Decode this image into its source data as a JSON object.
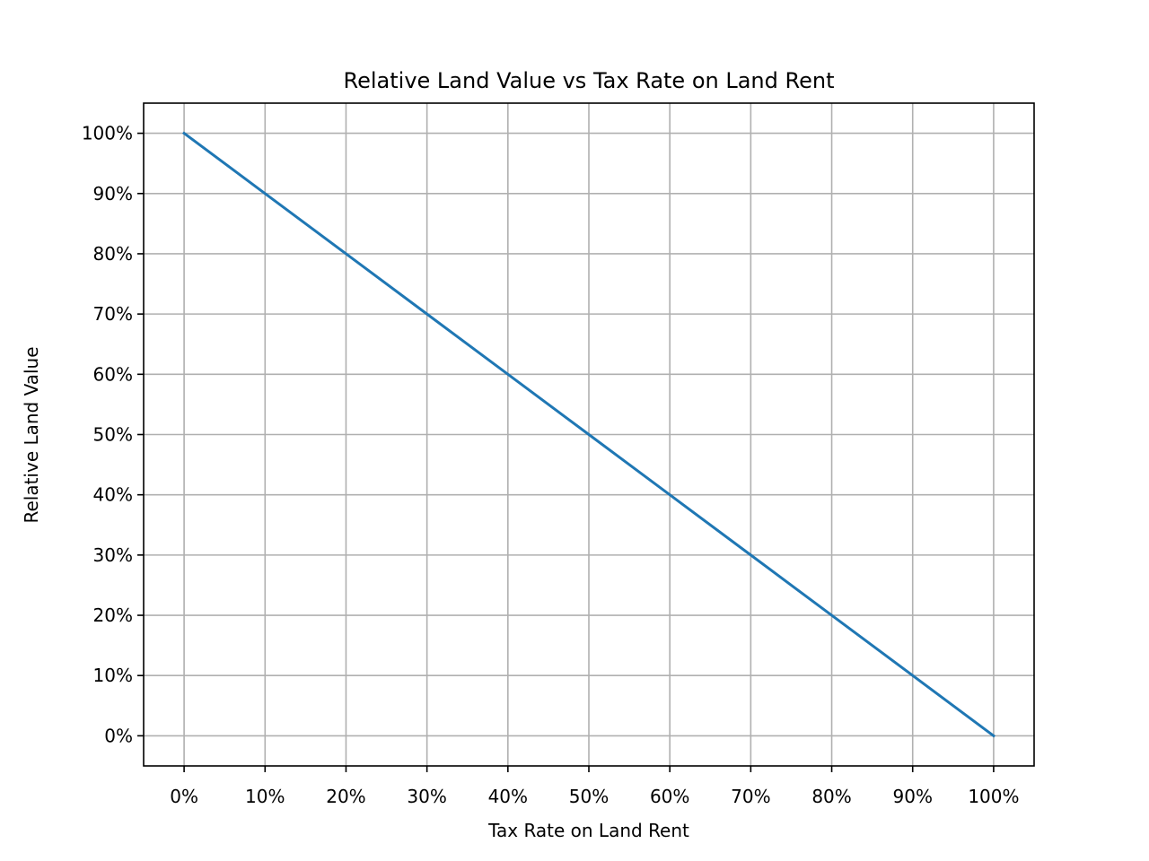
{
  "chart_data": {
    "type": "line",
    "title": "Relative Land Value vs Tax Rate on Land Rent",
    "xlabel": "Tax Rate on Land Rent",
    "ylabel": "Relative Land Value",
    "xlim": [
      -5,
      105
    ],
    "ylim": [
      -5,
      105
    ],
    "x_ticks": [
      0,
      10,
      20,
      30,
      40,
      50,
      60,
      70,
      80,
      90,
      100
    ],
    "x_tick_labels": [
      "0%",
      "10%",
      "20%",
      "30%",
      "40%",
      "50%",
      "60%",
      "70%",
      "80%",
      "90%",
      "100%"
    ],
    "y_ticks": [
      0,
      10,
      20,
      30,
      40,
      50,
      60,
      70,
      80,
      90,
      100
    ],
    "y_tick_labels": [
      "0%",
      "10%",
      "20%",
      "30%",
      "40%",
      "50%",
      "60%",
      "70%",
      "80%",
      "90%",
      "100%"
    ],
    "grid": true,
    "series": [
      {
        "color": "#1f77b4",
        "x": [
          0,
          10,
          20,
          30,
          40,
          50,
          60,
          70,
          80,
          90,
          100
        ],
        "y": [
          100,
          90,
          80,
          70,
          60,
          50,
          40,
          30,
          20,
          10,
          0
        ]
      }
    ]
  }
}
